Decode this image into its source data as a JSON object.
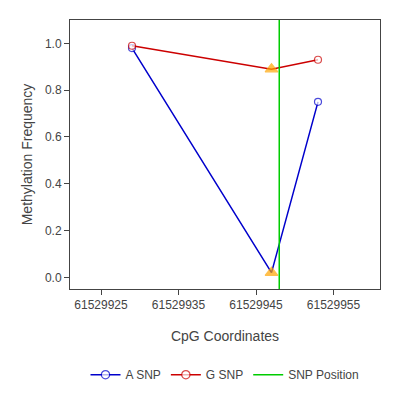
{
  "chart_data": {
    "type": "line",
    "xlabel": "CpG Coordinates",
    "ylabel": "Methylation Frequency",
    "series": [
      {
        "name": "A SNP",
        "color": "#0000CC",
        "marker": "circle",
        "x": [
          61529929,
          61529947,
          61529953
        ],
        "values": [
          0.98,
          0.02,
          0.75
        ]
      },
      {
        "name": "G SNP",
        "color": "#CC0000",
        "marker": "circle",
        "x": [
          61529929,
          61529947,
          61529953
        ],
        "values": [
          0.99,
          0.89,
          0.93
        ]
      },
      {
        "name": "SNP Position",
        "color": "#00CC00",
        "type": "vline",
        "x": [
          61529948
        ]
      }
    ],
    "highlight": {
      "x": 61529947,
      "color": "#FFA500",
      "marker": "triangle-up"
    },
    "xlim": [
      61529921,
      61529961
    ],
    "xticks": [
      61529925,
      61529935,
      61529945,
      61529955
    ],
    "ylim": [
      -0.05,
      1.1
    ],
    "yticks": [
      {
        "value": 0.0,
        "label": "0.0"
      },
      0.2,
      0.4,
      0.6,
      0.8,
      {
        "value": 1.0,
        "label": "1.0"
      }
    ],
    "grid": false,
    "legend": "bottom"
  }
}
